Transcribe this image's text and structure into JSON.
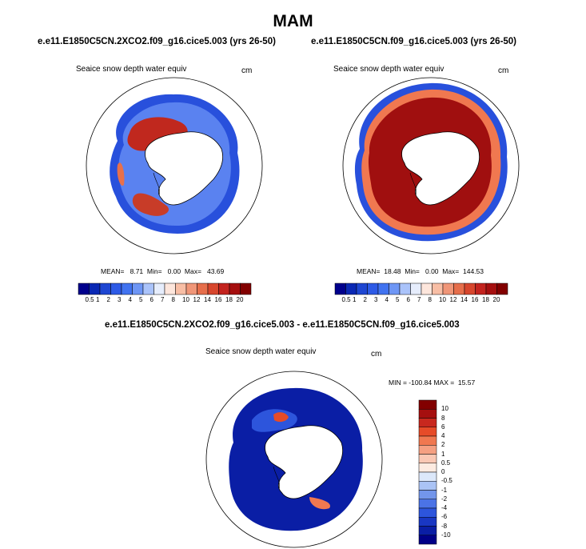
{
  "page_title": "MAM",
  "panels": [
    {
      "case_title": "e.e11.E1850C5CN.2XCO2.f09_g16.cice5.003 (yrs 26-50)",
      "variable": "Seaice snow depth water equiv",
      "units": "cm",
      "stats": "MEAN=   8.71  Min=   0.00  Max=   43.69"
    },
    {
      "case_title": "e.e11.E1850C5CN.f09_g16.cice5.003 (yrs 26-50)",
      "variable": "Seaice snow depth water equiv",
      "units": "cm",
      "stats": "MEAN=  18.48  Min=   0.00  Max=  144.53"
    },
    {
      "case_title": "e.e11.E1850C5CN.2XCO2.f09_g16.cice5.003 - e.e11.E1850C5CN.f09_g16.cice5.003",
      "variable": "Seaice snow depth water equiv",
      "units": "cm",
      "stats": "MIN = -100.84 MAX =  15.57"
    }
  ],
  "colorbar_top": {
    "labels": [
      "0.5",
      "1",
      "2",
      "3",
      "4",
      "5",
      "6",
      "7",
      "8",
      "10",
      "12",
      "14",
      "16",
      "18",
      "20"
    ],
    "colors": [
      "#00008c",
      "#0a28b4",
      "#1e46d2",
      "#2d5ae6",
      "#4173f0",
      "#6e96f5",
      "#aac3fa",
      "#e6edfc",
      "#fde6dc",
      "#f8bea5",
      "#f09678",
      "#e66e4b",
      "#d7462d",
      "#c3231e",
      "#a50f0f",
      "#820000"
    ]
  },
  "colorbar_diff": {
    "labels": [
      "10",
      "8",
      "6",
      "4",
      "2",
      "1",
      "0.5",
      "0",
      "-0.5",
      "-1",
      "-2",
      "-4",
      "-6",
      "-8",
      "-10"
    ],
    "colors": [
      "#820000",
      "#a50f0f",
      "#c8281e",
      "#e64b28",
      "#f07850",
      "#f5a082",
      "#fac8b4",
      "#fdebe1",
      "#dce8fa",
      "#aac3f5",
      "#7396eb",
      "#4b73e6",
      "#2d55dc",
      "#1937c3",
      "#0a1ea5",
      "#000087"
    ]
  },
  "colors": {
    "ocean_ring": "#ffffff",
    "land": "#ffffff",
    "coast": "#000000"
  }
}
